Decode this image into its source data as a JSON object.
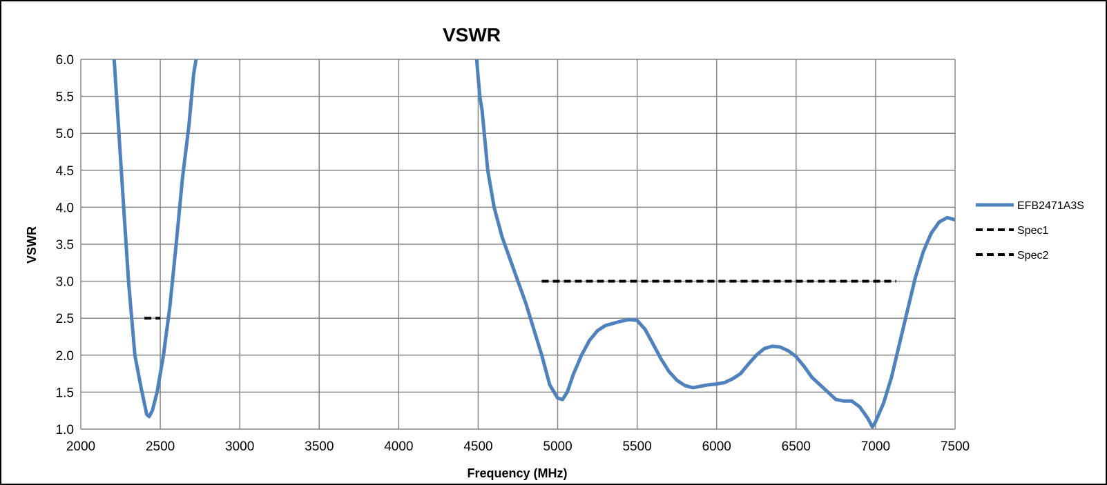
{
  "chart_data": {
    "type": "line",
    "title": "VSWR",
    "xlabel": "Frequency (MHz)",
    "ylabel": "VSWR",
    "xlim": [
      2000,
      7500
    ],
    "ylim": [
      1.0,
      6.0
    ],
    "xticks": [
      2000,
      2500,
      3000,
      3500,
      4000,
      4500,
      5000,
      5500,
      6000,
      6500,
      7000,
      7500
    ],
    "xtick_labels": [
      "2000",
      "2500",
      "3000",
      "3500",
      "4000",
      "4500",
      "5000",
      "5500",
      "6000",
      "6500",
      "7000",
      "7500"
    ],
    "yticks": [
      1.0,
      1.5,
      2.0,
      2.5,
      3.0,
      3.5,
      4.0,
      4.5,
      5.0,
      5.5,
      6.0
    ],
    "ytick_labels": [
      "1.0",
      "1.5",
      "2.0",
      "2.5",
      "3.0",
      "3.5",
      "4.0",
      "4.5",
      "5.0",
      "5.5",
      "6.0"
    ],
    "grid": true,
    "legend_position": "right",
    "series": [
      {
        "name": "EFB2471A3S",
        "color": "#4f81bd",
        "style": "solid",
        "segments": [
          [
            [
              2210,
              6.0
            ],
            [
              2240,
              5.0
            ],
            [
              2270,
              4.0
            ],
            [
              2300,
              3.0
            ],
            [
              2340,
              2.0
            ],
            [
              2380,
              1.55
            ],
            [
              2415,
              1.2
            ],
            [
              2430,
              1.17
            ],
            [
              2450,
              1.25
            ],
            [
              2480,
              1.5
            ],
            [
              2520,
              2.0
            ],
            [
              2560,
              2.65
            ],
            [
              2600,
              3.5
            ],
            [
              2640,
              4.4
            ],
            [
              2680,
              5.1
            ],
            [
              2710,
              5.8
            ],
            [
              2725,
              6.0
            ]
          ],
          [
            [
              4490,
              6.0
            ],
            [
              4510,
              5.5
            ],
            [
              4525,
              5.3
            ],
            [
              4560,
              4.5
            ],
            [
              4600,
              4.0
            ],
            [
              4650,
              3.6
            ],
            [
              4700,
              3.3
            ],
            [
              4750,
              3.0
            ],
            [
              4800,
              2.7
            ],
            [
              4850,
              2.35
            ],
            [
              4900,
              2.0
            ],
            [
              4950,
              1.6
            ],
            [
              5000,
              1.42
            ],
            [
              5030,
              1.4
            ],
            [
              5060,
              1.5
            ],
            [
              5100,
              1.75
            ],
            [
              5150,
              2.0
            ],
            [
              5200,
              2.2
            ],
            [
              5250,
              2.33
            ],
            [
              5300,
              2.4
            ],
            [
              5350,
              2.43
            ],
            [
              5400,
              2.46
            ],
            [
              5450,
              2.48
            ],
            [
              5500,
              2.47
            ],
            [
              5550,
              2.35
            ],
            [
              5600,
              2.15
            ],
            [
              5650,
              1.95
            ],
            [
              5700,
              1.78
            ],
            [
              5750,
              1.66
            ],
            [
              5800,
              1.59
            ],
            [
              5850,
              1.56
            ],
            [
              5900,
              1.58
            ],
            [
              5950,
              1.6
            ],
            [
              6000,
              1.61
            ],
            [
              6050,
              1.63
            ],
            [
              6100,
              1.68
            ],
            [
              6150,
              1.75
            ],
            [
              6200,
              1.88
            ],
            [
              6250,
              2.0
            ],
            [
              6300,
              2.09
            ],
            [
              6350,
              2.12
            ],
            [
              6400,
              2.11
            ],
            [
              6450,
              2.06
            ],
            [
              6500,
              1.98
            ],
            [
              6550,
              1.85
            ],
            [
              6600,
              1.7
            ],
            [
              6650,
              1.6
            ],
            [
              6700,
              1.5
            ],
            [
              6750,
              1.4
            ],
            [
              6800,
              1.38
            ],
            [
              6850,
              1.38
            ],
            [
              6900,
              1.3
            ],
            [
              6950,
              1.15
            ],
            [
              6980,
              1.03
            ],
            [
              7000,
              1.1
            ],
            [
              7050,
              1.35
            ],
            [
              7100,
              1.7
            ],
            [
              7150,
              2.15
            ],
            [
              7200,
              2.6
            ],
            [
              7250,
              3.05
            ],
            [
              7300,
              3.4
            ],
            [
              7350,
              3.65
            ],
            [
              7400,
              3.8
            ],
            [
              7450,
              3.86
            ],
            [
              7500,
              3.83
            ]
          ]
        ]
      },
      {
        "name": "Spec1",
        "color": "#000000",
        "style": "dashed",
        "segments": [
          [
            [
              2400,
              2.5
            ],
            [
              2500,
              2.5
            ]
          ]
        ]
      },
      {
        "name": "Spec2",
        "color": "#000000",
        "style": "dashed",
        "segments": [
          [
            [
              4900,
              3.0
            ],
            [
              7130,
              3.0
            ]
          ]
        ]
      }
    ]
  }
}
